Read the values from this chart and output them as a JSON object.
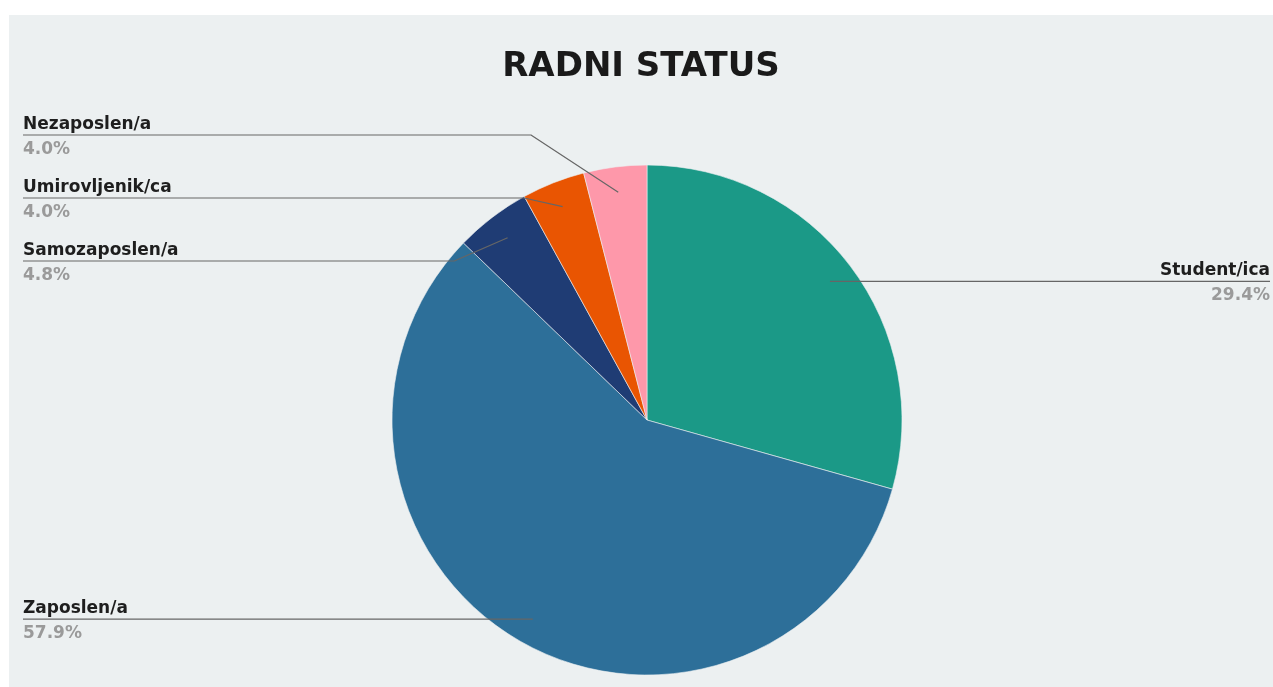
{
  "chart_data": {
    "type": "pie",
    "title": "RADNI STATUS",
    "categories": [
      "Student/ica",
      "Zaposlen/a",
      "Samozaposlen/a",
      "Umirovljenik/ca",
      "Nezaposlen/a"
    ],
    "values": [
      29.4,
      57.9,
      4.8,
      4.0,
      4.0
    ],
    "colors": [
      "#1b9987",
      "#2d6f99",
      "#1f3c74",
      "#e95502",
      "#fe98aa"
    ],
    "value_labels": [
      "29.4%",
      "57.9%",
      "4.8%",
      "4.0%",
      "4.0%"
    ]
  }
}
